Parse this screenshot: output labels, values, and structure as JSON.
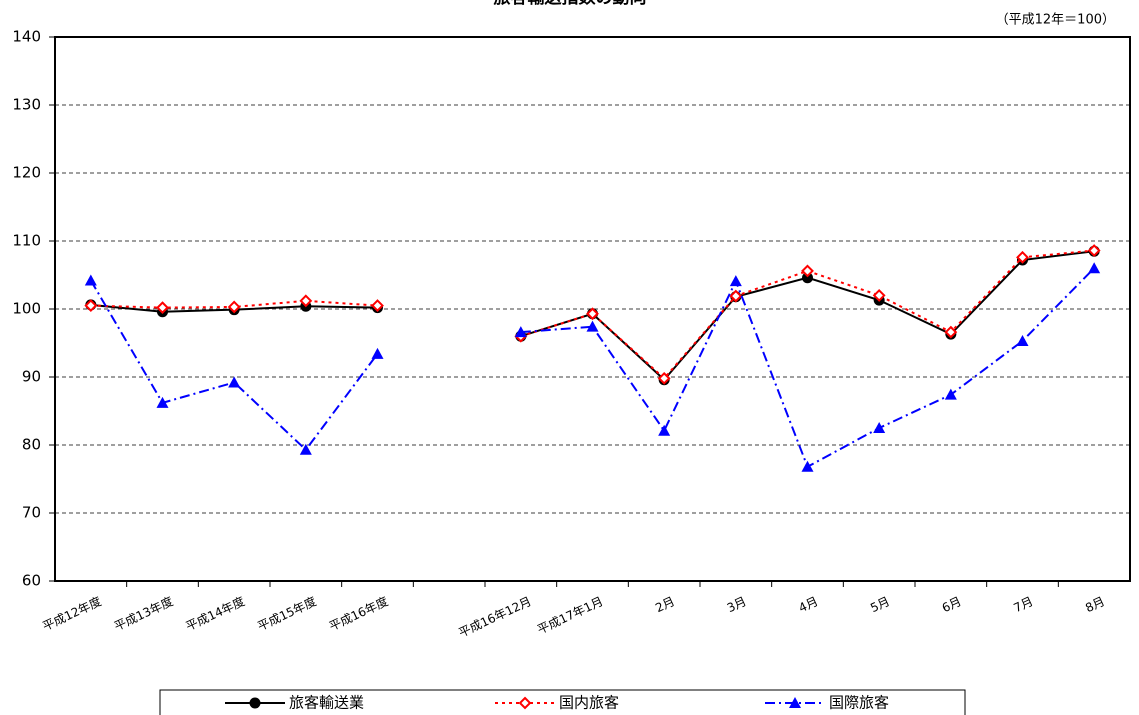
{
  "chart_data": {
    "type": "line",
    "title": "旅客輸送指数の動向",
    "subtitle": "（平成12年＝100）",
    "categories": [
      "平成12年度",
      "平成13年度",
      "平成14年度",
      "平成15年度",
      "平成16年度",
      null,
      "平成16年12月",
      "平成17年1月",
      "2月",
      "3月",
      "4月",
      "5月",
      "6月",
      "7月",
      "8月"
    ],
    "series": [
      {
        "name": "旅客輸送業",
        "color": "#000000",
        "values": [
          100.6,
          99.6,
          99.9,
          100.4,
          100.2,
          null,
          96.0,
          99.3,
          89.6,
          101.8,
          104.6,
          101.3,
          96.3,
          107.2,
          108.5
        ]
      },
      {
        "name": "国内旅客",
        "color": "#ff0000",
        "values": [
          100.5,
          100.2,
          100.3,
          101.2,
          100.5,
          null,
          96.0,
          99.3,
          89.8,
          101.9,
          105.6,
          102.0,
          96.6,
          107.6,
          108.6
        ]
      },
      {
        "name": "国際旅客",
        "color": "#0000ff",
        "values": [
          104.2,
          86.2,
          89.2,
          79.3,
          93.4,
          null,
          96.6,
          97.4,
          82.1,
          104.1,
          76.8,
          82.5,
          87.4,
          95.3,
          106.0
        ]
      }
    ],
    "ylim": [
      60,
      140
    ],
    "yticks": [
      60,
      70,
      80,
      90,
      100,
      110,
      120,
      130,
      140
    ],
    "grid": true
  }
}
